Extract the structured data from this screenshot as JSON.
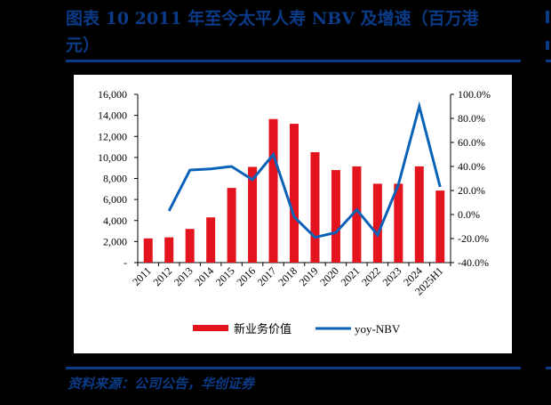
{
  "header": {
    "title": "图表 10   2011 年至今太平人寿 NBV 及增速（百万港元）",
    "title_line1": "图表 10   2011 年至今太平人寿 NBV 及增速（百万港",
    "title_line2": "元）"
  },
  "footer": {
    "source": "资料来源：公司公告，华创证券"
  },
  "colors": {
    "accent_blue": "#0b3a86",
    "bar_red": "#e3141e",
    "line_blue": "#0a62b8",
    "background": "#000000",
    "panel": "#ffffff"
  },
  "chart_data": {
    "type": "bar",
    "title": "2011 年至今太平人寿 NBV 及增速（百万港元）",
    "categories": [
      "2011",
      "2012",
      "2013",
      "2014",
      "2015",
      "2016",
      "2017",
      "2018",
      "2019",
      "2020",
      "2021",
      "2022",
      "2023",
      "2024",
      "2025H1"
    ],
    "series": [
      {
        "name": "新业务价值",
        "type": "bar",
        "axis": "left",
        "values": [
          2300,
          2400,
          3200,
          4300,
          7100,
          9100,
          13650,
          13200,
          10500,
          8800,
          9150,
          7500,
          7500,
          9150,
          6850
        ]
      },
      {
        "name": "yoy-NBV",
        "type": "line",
        "axis": "right",
        "values": [
          null,
          3,
          37,
          38,
          40,
          29,
          50,
          -2,
          -19,
          -15,
          4,
          -17,
          25,
          90,
          23
        ]
      }
    ],
    "left_axis": {
      "ylim": [
        0,
        16000
      ],
      "ticks": [
        "-",
        "2,000",
        "4,000",
        "6,000",
        "8,000",
        "10,000",
        "12,000",
        "14,000",
        "16,000"
      ]
    },
    "right_axis": {
      "ylim": [
        -40,
        100
      ],
      "ticks": [
        "-40.0%",
        "-20.0%",
        "0.0%",
        "20.0%",
        "40.0%",
        "60.0%",
        "80.0%",
        "100.0%"
      ]
    },
    "xlabel": "",
    "ylabel": "",
    "grid": false,
    "legend_position": "bottom",
    "legend": [
      "新业务价值",
      "yoy-NBV"
    ]
  }
}
